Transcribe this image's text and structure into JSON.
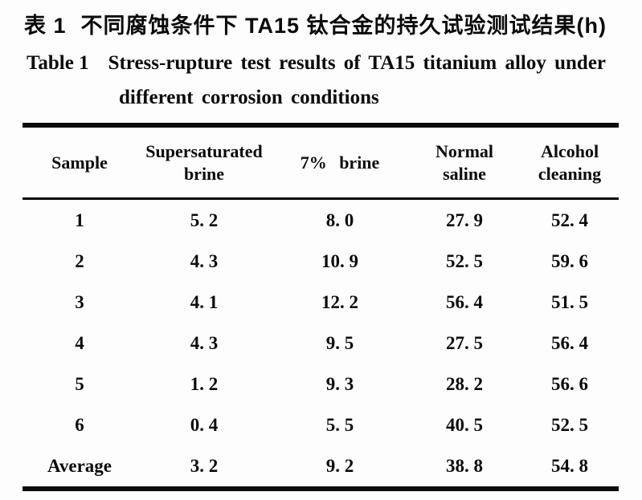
{
  "title": {
    "zh_label": "表 1",
    "zh_text": "不同腐蚀条件下 TA15 钛合金的持久试验测试结果(h)",
    "en_label": "Table 1",
    "en_line1": "Stress-rupture test results of TA15 titanium alloy under",
    "en_line2": "different corrosion conditions"
  },
  "table": {
    "header": {
      "col0": [
        "Sample"
      ],
      "col1": [
        "Supersaturated",
        "brine"
      ],
      "col2": [
        "7% brine"
      ],
      "col3": [
        "Normal",
        "saline"
      ],
      "col4": [
        "Alcohol",
        "cleaning"
      ]
    },
    "rows": [
      {
        "label": "1",
        "cells": [
          "5. 2",
          "8. 0",
          "27. 9",
          "52. 4"
        ]
      },
      {
        "label": "2",
        "cells": [
          "4. 3",
          "10. 9",
          "52. 5",
          "59. 6"
        ]
      },
      {
        "label": "3",
        "cells": [
          "4. 1",
          "12. 2",
          "56. 4",
          "51. 5"
        ]
      },
      {
        "label": "4",
        "cells": [
          "4. 3",
          "9. 5",
          "27. 5",
          "56. 4"
        ]
      },
      {
        "label": "5",
        "cells": [
          "1. 2",
          "9. 3",
          "28. 2",
          "56. 6"
        ]
      },
      {
        "label": "6",
        "cells": [
          "0. 4",
          "5. 5",
          "40. 5",
          "52. 5"
        ]
      },
      {
        "label": "Average",
        "cells": [
          "3. 2",
          "9. 2",
          "38. 8",
          "54. 8"
        ]
      }
    ]
  }
}
